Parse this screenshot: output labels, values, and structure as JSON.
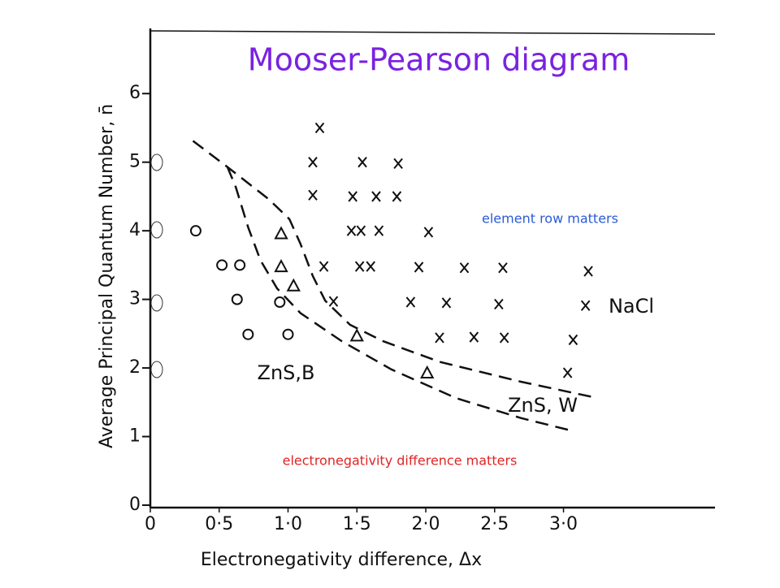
{
  "chart_data": {
    "type": "scatter",
    "title": "Mooser-Pearson diagram",
    "title_color": "#7a22e0",
    "x_label": "Electronegativity difference, Δx",
    "y_label": "Average Principal Quantum Number, n̄",
    "xlim": [
      0,
      4.1
    ],
    "ylim": [
      0,
      6.95
    ],
    "xticks": [
      0,
      {
        "value": 0.5,
        "label": "0·5"
      },
      {
        "value": 1.0,
        "label": "1·0"
      },
      {
        "value": 1.5,
        "label": "1·5"
      },
      {
        "value": 2.0,
        "label": "2·0"
      },
      {
        "value": 2.5,
        "label": "2·5"
      },
      {
        "value": 3.0,
        "label": "3·0"
      }
    ],
    "yticks": [
      0,
      1,
      2,
      3,
      4,
      5,
      6
    ],
    "grid": false,
    "series": [
      {
        "marker": "o",
        "color": "#111111",
        "x": [
          0.33,
          0.52,
          0.65,
          0.63,
          0.94,
          0.71,
          1.0
        ],
        "values": [
          4.0,
          3.5,
          3.5,
          3.0,
          2.96,
          2.49,
          2.49
        ]
      },
      {
        "marker": "^",
        "color": "#111111",
        "x": [
          0.95,
          0.95,
          1.04,
          1.5,
          2.01
        ],
        "values": [
          3.96,
          3.48,
          3.2,
          2.47,
          1.93
        ]
      },
      {
        "marker": "x",
        "color": "#111111",
        "x": [
          1.23,
          1.18,
          1.54,
          1.8,
          1.18,
          1.47,
          1.64,
          1.79,
          1.46,
          1.53,
          1.66,
          2.02,
          1.26,
          1.52,
          1.6,
          1.95,
          2.28,
          2.56,
          3.18,
          1.33,
          1.89,
          2.15,
          2.53,
          3.16,
          2.1,
          2.35,
          2.57,
          3.07,
          3.03
        ],
        "values": [
          5.5,
          5.0,
          5.0,
          4.98,
          4.52,
          4.5,
          4.5,
          4.5,
          4.0,
          4.0,
          4.0,
          3.98,
          3.48,
          3.48,
          3.48,
          3.47,
          3.46,
          3.46,
          3.41,
          2.97,
          2.96,
          2.95,
          2.93,
          2.91,
          2.44,
          2.45,
          2.44,
          2.41,
          1.93
        ]
      },
      {
        "marker": "line",
        "style": "dashed",
        "color": "#111111",
        "x": [
          0.31,
          0.56,
          0.86,
          1.01,
          1.09,
          1.18,
          1.27,
          1.45,
          1.69,
          2.1,
          2.69,
          3.25
        ],
        "values": [
          5.31,
          4.93,
          4.46,
          4.17,
          3.81,
          3.34,
          2.98,
          2.63,
          2.39,
          2.09,
          1.8,
          1.56
        ]
      },
      {
        "marker": "line",
        "style": "dashed",
        "color": "#111111",
        "x": [
          0.56,
          0.62,
          0.71,
          0.8,
          0.92,
          1.09,
          1.39,
          1.75,
          2.22,
          2.69,
          3.05
        ],
        "values": [
          4.93,
          4.64,
          4.05,
          3.57,
          3.16,
          2.8,
          2.39,
          1.98,
          1.56,
          1.27,
          1.09
        ]
      }
    ],
    "annotations": [
      {
        "text": "element row matters",
        "color": "#2a5bd7"
      },
      {
        "text": "electronegativity difference matters",
        "color": "#e02424"
      },
      {
        "text": "ZnS,B",
        "color": "#111111"
      },
      {
        "text": "ZnS, W",
        "color": "#111111"
      },
      {
        "text": "NaCl",
        "color": "#111111"
      }
    ]
  }
}
